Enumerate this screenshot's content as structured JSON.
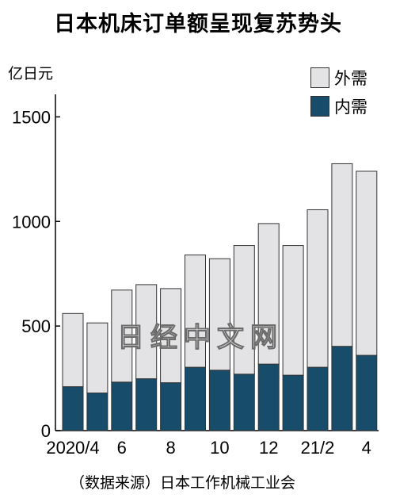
{
  "title": "日本机床订单额呈现复苏势头",
  "unit": "亿日元",
  "source": "（数据来源）日本工作机械工业会",
  "watermark": "日经中文网",
  "colors": {
    "domestic": "#184c6b",
    "foreign": "#e3e3e6",
    "bar_border": "#333333",
    "axis": "#000000"
  },
  "chart_data": {
    "type": "bar",
    "stacked": true,
    "categories": [
      "2020/4",
      "",
      "6",
      "",
      "8",
      "",
      "10",
      "",
      "12",
      "",
      "21/2",
      "",
      "4"
    ],
    "series": [
      {
        "name": "内需",
        "color": "#184c6b",
        "values": [
          210,
          180,
          232,
          248,
          229,
          303,
          289,
          270,
          318,
          265,
          303,
          403,
          360
        ]
      },
      {
        "name": "外需",
        "color": "#e3e3e6",
        "values": [
          350,
          335,
          440,
          450,
          450,
          537,
          533,
          615,
          672,
          620,
          753,
          873,
          880
        ]
      }
    ],
    "totals": [
      560,
      515,
      672,
      698,
      679,
      840,
      822,
      885,
      990,
      885,
      1056,
      1276,
      1240
    ],
    "ylim": [
      0,
      1600
    ],
    "yticks": [
      0,
      500,
      1000,
      1500
    ],
    "legend_position": "top-right",
    "grid": false
  }
}
